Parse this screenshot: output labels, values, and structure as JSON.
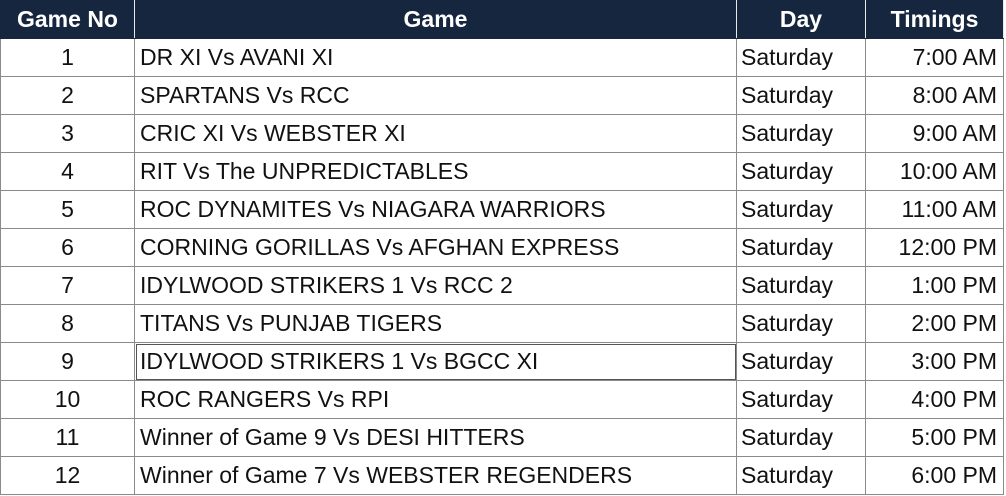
{
  "header": {
    "game_no": "Game No",
    "game": "Game",
    "day": "Day",
    "timings": "Timings"
  },
  "rows": [
    {
      "no": "1",
      "game": "DR XI Vs AVANI XI",
      "day": "Saturday",
      "time": "7:00 AM"
    },
    {
      "no": "2",
      "game": "SPARTANS Vs RCC",
      "day": "Saturday",
      "time": "8:00 AM"
    },
    {
      "no": "3",
      "game": "CRIC XI Vs WEBSTER XI",
      "day": "Saturday",
      "time": "9:00 AM"
    },
    {
      "no": "4",
      "game": "RIT Vs The UNPREDICTABLES",
      "day": "Saturday",
      "time": "10:00 AM"
    },
    {
      "no": "5",
      "game": "ROC DYNAMITES Vs NIAGARA WARRIORS",
      "day": "Saturday",
      "time": "11:00 AM"
    },
    {
      "no": "6",
      "game": "CORNING GORILLAS Vs AFGHAN EXPRESS",
      "day": "Saturday",
      "time": "12:00 PM"
    },
    {
      "no": "7",
      "game": "IDYLWOOD STRIKERS 1 Vs RCC 2",
      "day": "Saturday",
      "time": "1:00 PM"
    },
    {
      "no": "8",
      "game": "TITANS Vs PUNJAB TIGERS",
      "day": "Saturday",
      "time": "2:00 PM"
    },
    {
      "no": "9",
      "game": "IDYLWOOD STRIKERS 1 Vs BGCC XI",
      "day": "Saturday",
      "time": "3:00 PM"
    },
    {
      "no": "10",
      "game": "ROC RANGERS Vs RPI",
      "day": "Saturday",
      "time": "4:00 PM"
    },
    {
      "no": "11",
      "game": "Winner of Game 9 Vs DESI HITTERS",
      "day": "Saturday",
      "time": "5:00 PM"
    },
    {
      "no": "12",
      "game": "Winner of Game 7 Vs WEBSTER REGENDERS",
      "day": "Saturday",
      "time": "6:00 PM"
    }
  ],
  "colors": {
    "header_bg": "#16263f",
    "header_text": "#ffffff",
    "grid": "#8a8a8a"
  }
}
